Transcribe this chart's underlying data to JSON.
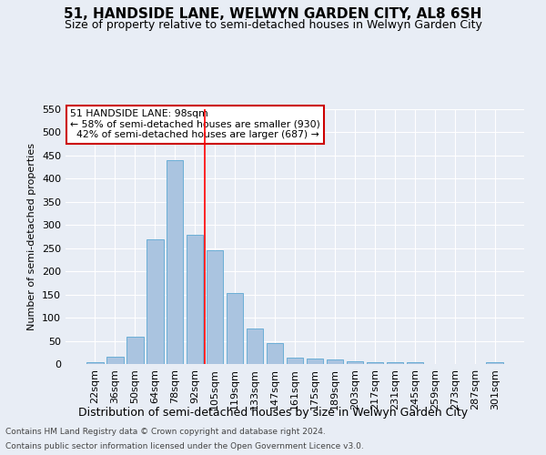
{
  "title": "51, HANDSIDE LANE, WELWYN GARDEN CITY, AL8 6SH",
  "subtitle": "Size of property relative to semi-detached houses in Welwyn Garden City",
  "xlabel": "Distribution of semi-detached houses by size in Welwyn Garden City",
  "ylabel": "Number of semi-detached properties",
  "footnote1": "Contains HM Land Registry data © Crown copyright and database right 2024.",
  "footnote2": "Contains public sector information licensed under the Open Government Licence v3.0.",
  "bar_labels": [
    "22sqm",
    "36sqm",
    "50sqm",
    "64sqm",
    "78sqm",
    "92sqm",
    "105sqm",
    "119sqm",
    "133sqm",
    "147sqm",
    "161sqm",
    "175sqm",
    "189sqm",
    "203sqm",
    "217sqm",
    "231sqm",
    "245sqm",
    "259sqm",
    "273sqm",
    "287sqm",
    "301sqm"
  ],
  "bar_values": [
    4,
    16,
    59,
    270,
    440,
    278,
    246,
    153,
    77,
    45,
    13,
    12,
    10,
    6,
    4,
    3,
    3,
    0,
    0,
    0,
    4
  ],
  "bar_color": "#aac4e0",
  "bar_edgecolor": "#6baed6",
  "background_color": "#e8edf5",
  "grid_color": "#ffffff",
  "property_label": "51 HANDSIDE LANE: 98sqm",
  "pct_smaller": 58,
  "count_smaller": 930,
  "pct_larger": 42,
  "count_larger": 687,
  "vline_x_index": 5.5,
  "annotation_box_color": "#ffffff",
  "annotation_border_color": "#cc0000",
  "yticks": [
    0,
    50,
    100,
    150,
    200,
    250,
    300,
    350,
    400,
    450,
    500,
    550
  ],
  "ylim": [
    0,
    550
  ],
  "title_fontsize": 11,
  "subtitle_fontsize": 9
}
